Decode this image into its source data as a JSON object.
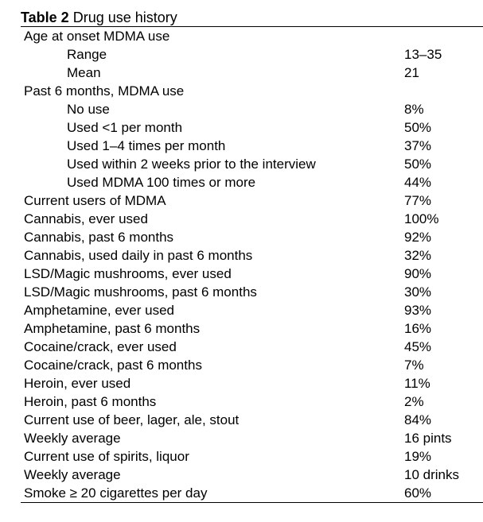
{
  "table": {
    "title_bold": "Table 2",
    "title_rest": " Drug use history",
    "rows": [
      {
        "label": "Age at onset MDMA use",
        "value": "",
        "indent": false
      },
      {
        "label": "Range",
        "value": "13–35",
        "indent": true
      },
      {
        "label": "Mean",
        "value": "21",
        "indent": true
      },
      {
        "label": "Past 6 months, MDMA use",
        "value": "",
        "indent": false
      },
      {
        "label": "No use",
        "value": "8%",
        "indent": true
      },
      {
        "label": "Used <1 per month",
        "value": "50%",
        "indent": true
      },
      {
        "label": "Used 1–4 times per month",
        "value": "37%",
        "indent": true
      },
      {
        "label": "Used within 2 weeks prior to the interview",
        "value": "50%",
        "indent": true
      },
      {
        "label": "Used MDMA 100 times or more",
        "value": "44%",
        "indent": true
      },
      {
        "label": "Current users of MDMA",
        "value": "77%",
        "indent": false
      },
      {
        "label": "Cannabis, ever used",
        "value": "100%",
        "indent": false
      },
      {
        "label": "Cannabis, past 6 months",
        "value": "92%",
        "indent": false
      },
      {
        "label": "Cannabis, used daily in past 6 months",
        "value": "32%",
        "indent": false
      },
      {
        "label": "LSD/Magic mushrooms, ever used",
        "value": "90%",
        "indent": false
      },
      {
        "label": "LSD/Magic mushrooms, past 6 months",
        "value": "30%",
        "indent": false
      },
      {
        "label": "Amphetamine,  ever used",
        "value": "93%",
        "indent": false
      },
      {
        "label": "Amphetamine, past 6 months",
        "value": "16%",
        "indent": false
      },
      {
        "label": "Cocaine/crack, ever used",
        "value": "45%",
        "indent": false
      },
      {
        "label": "Cocaine/crack, past 6 months",
        "value": "7%",
        "indent": false
      },
      {
        "label": "Heroin, ever used",
        "value": "11%",
        "indent": false
      },
      {
        "label": "Heroin, past 6 months",
        "value": "2%",
        "indent": false
      },
      {
        "label": "Current use of beer, lager, ale, stout",
        "value": "84%",
        "indent": false
      },
      {
        "label": "Weekly average",
        "value": "16 pints",
        "indent": false
      },
      {
        "label": "Current use of spirits, liquor",
        "value": "19%",
        "indent": false
      },
      {
        "label": "Weekly average",
        "value": "10 drinks",
        "indent": false
      },
      {
        "label": "Smoke ≥ 20 cigarettes per day",
        "value": "60%",
        "indent": false
      }
    ]
  }
}
